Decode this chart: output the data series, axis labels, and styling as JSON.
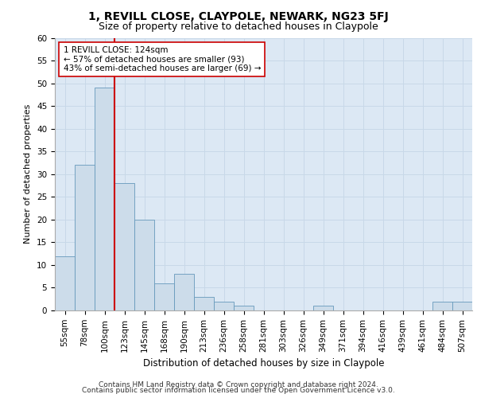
{
  "title": "1, REVILL CLOSE, CLAYPOLE, NEWARK, NG23 5FJ",
  "subtitle": "Size of property relative to detached houses in Claypole",
  "xlabel": "Distribution of detached houses by size in Claypole",
  "ylabel": "Number of detached properties",
  "bar_labels": [
    "55sqm",
    "78sqm",
    "100sqm",
    "123sqm",
    "145sqm",
    "168sqm",
    "190sqm",
    "213sqm",
    "236sqm",
    "258sqm",
    "281sqm",
    "303sqm",
    "326sqm",
    "349sqm",
    "371sqm",
    "394sqm",
    "416sqm",
    "439sqm",
    "461sqm",
    "484sqm",
    "507sqm"
  ],
  "bar_values": [
    12,
    32,
    49,
    28,
    20,
    6,
    8,
    3,
    2,
    1,
    0,
    0,
    0,
    1,
    0,
    0,
    0,
    0,
    0,
    2,
    2
  ],
  "bar_color": "#ccdcea",
  "bar_edge_color": "#6699bb",
  "highlight_line_color": "#cc0000",
  "annotation_text": "1 REVILL CLOSE: 124sqm\n← 57% of detached houses are smaller (93)\n43% of semi-detached houses are larger (69) →",
  "annotation_box_color": "#ffffff",
  "annotation_box_edge_color": "#cc0000",
  "ylim": [
    0,
    60
  ],
  "yticks": [
    0,
    5,
    10,
    15,
    20,
    25,
    30,
    35,
    40,
    45,
    50,
    55,
    60
  ],
  "grid_color": "#c8d8e8",
  "background_color": "#dce8f4",
  "footer_line1": "Contains HM Land Registry data © Crown copyright and database right 2024.",
  "footer_line2": "Contains public sector information licensed under the Open Government Licence v3.0.",
  "title_fontsize": 10,
  "subtitle_fontsize": 9,
  "xlabel_fontsize": 8.5,
  "ylabel_fontsize": 8,
  "tick_fontsize": 7.5,
  "annotation_fontsize": 7.5,
  "footer_fontsize": 6.5
}
